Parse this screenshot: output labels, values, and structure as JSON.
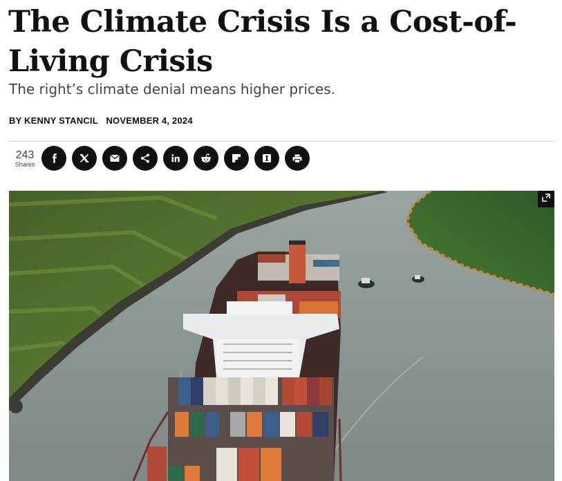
{
  "article": {
    "headline": "The Climate Crisis Is a Cost-of-Living Crisis",
    "dek": "The right’s climate denial means higher prices.",
    "byline": "BY KENNY STANCIL",
    "date": "NOVEMBER 4, 2024"
  },
  "share": {
    "count": "243",
    "count_label": "Shares",
    "buttons": [
      {
        "icon": "facebook-icon",
        "label": "Share on Facebook"
      },
      {
        "icon": "x-icon",
        "label": "Share on X"
      },
      {
        "icon": "email-icon",
        "label": "Share via Email"
      },
      {
        "icon": "share-icon",
        "label": "Share"
      },
      {
        "icon": "linkedin-icon",
        "label": "Share on LinkedIn"
      },
      {
        "icon": "reddit-icon",
        "label": "Share on Reddit"
      },
      {
        "icon": "flipboard-icon",
        "label": "Share on Flipboard"
      },
      {
        "icon": "instapaper-icon",
        "label": "Save to Instapaper"
      },
      {
        "icon": "print-icon",
        "label": "Print"
      }
    ]
  },
  "hero": {
    "image_alt": "Aerial view of a container ship passing through a canal",
    "expand_icon": "expand-icon"
  }
}
